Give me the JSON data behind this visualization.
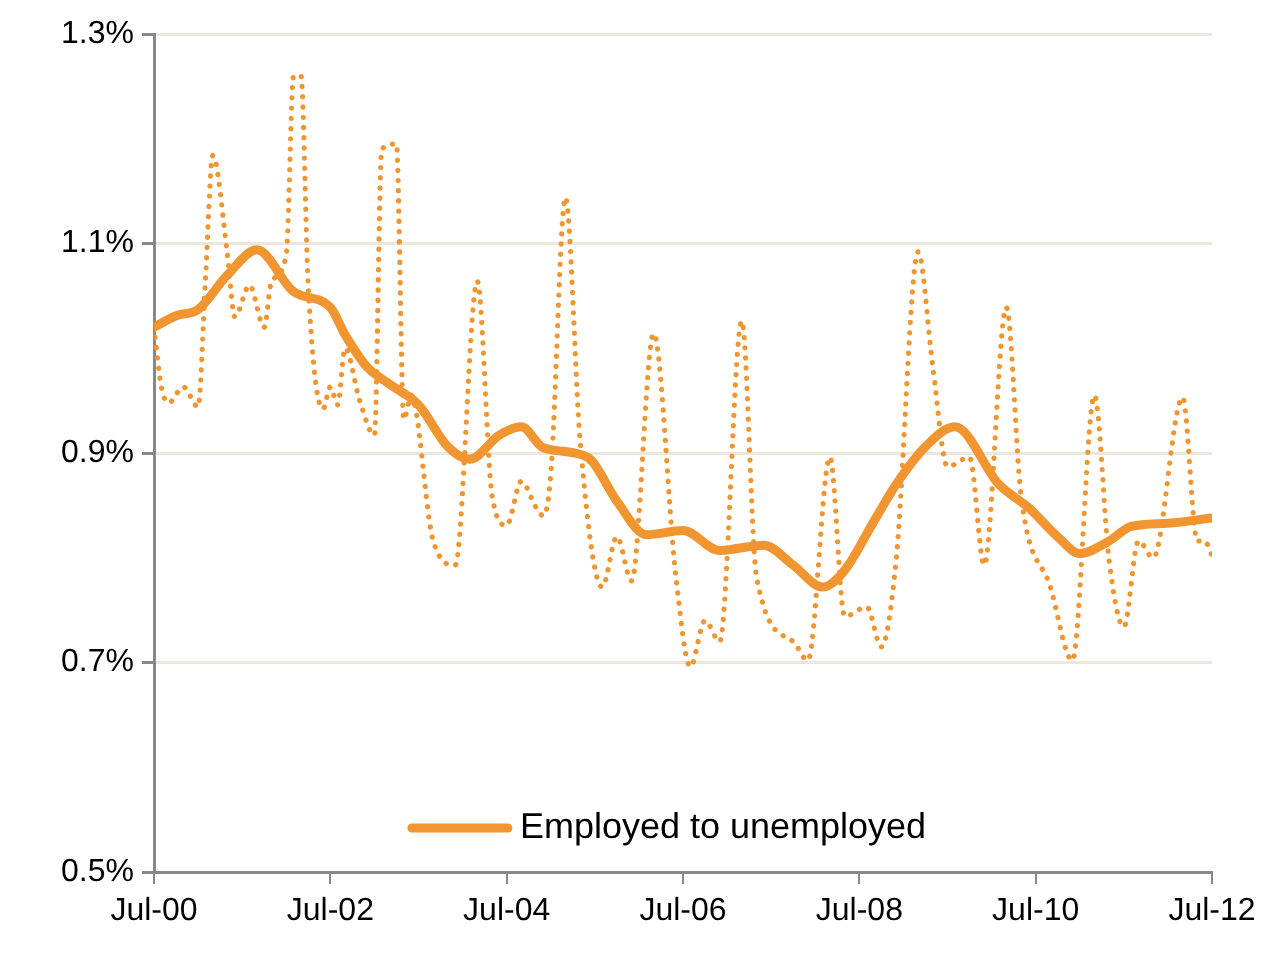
{
  "chart_data": {
    "type": "line",
    "xlim": [
      "2000-07",
      "2012-07"
    ],
    "xticks": [
      {
        "value": "2000-07",
        "label": "Jul-00"
      },
      {
        "value": "2002-07",
        "label": "Jul-02"
      },
      {
        "value": "2004-07",
        "label": "Jul-04"
      },
      {
        "value": "2006-07",
        "label": "Jul-06"
      },
      {
        "value": "2008-07",
        "label": "Jul-08"
      },
      {
        "value": "2010-07",
        "label": "Jul-10"
      },
      {
        "value": "2012-07",
        "label": "Jul-12"
      }
    ],
    "ylim": [
      0.5,
      1.3
    ],
    "yticks": [
      {
        "value": 0.5,
        "label": "0.5%"
      },
      {
        "value": 0.7,
        "label": "0.7%"
      },
      {
        "value": 0.9,
        "label": "0.9%"
      },
      {
        "value": 1.1,
        "label": "1.1%"
      },
      {
        "value": 1.3,
        "label": "1.3%"
      }
    ],
    "grid": "y",
    "legend": "bottom",
    "marker": "none",
    "series": [
      {
        "color": "#f0952f",
        "line_style": "dotted",
        "x": [
          "2000-07",
          "2000-08",
          "2000-09",
          "2000-11",
          "2001-01",
          "2001-02",
          "2001-03",
          "2001-05",
          "2001-06",
          "2001-08",
          "2001-10",
          "2001-11",
          "2002-01",
          "2002-02",
          "2002-03",
          "2002-04",
          "2002-06",
          "2002-07",
          "2002-08",
          "2002-09",
          "2002-11",
          "2003-01",
          "2003-02",
          "2003-04",
          "2003-05",
          "2003-06",
          "2003-09",
          "2003-12",
          "2004-03",
          "2004-05",
          "2004-07",
          "2004-09",
          "2004-11",
          "2004-12",
          "2005-01",
          "2005-03",
          "2005-05",
          "2005-08",
          "2005-10",
          "2005-12",
          "2006-03",
          "2006-06",
          "2006-08",
          "2006-10",
          "2006-12",
          "2007-03",
          "2007-05",
          "2007-10",
          "2007-12",
          "2008-03",
          "2008-05",
          "2008-08",
          "2008-10",
          "2008-12",
          "2009-03",
          "2009-05",
          "2009-07",
          "2009-10",
          "2009-12",
          "2010-03",
          "2010-05",
          "2010-09",
          "2010-12",
          "2011-03",
          "2011-05",
          "2011-07",
          "2011-09",
          "2011-11",
          "2012-03",
          "2012-05",
          "2012-06",
          "2012-07"
        ],
        "values": [
          1.02,
          0.963,
          0.948,
          0.963,
          0.944,
          1.064,
          1.184,
          1.089,
          1.03,
          1.06,
          1.02,
          1.064,
          1.089,
          1.26,
          1.26,
          1.058,
          0.942,
          0.963,
          0.946,
          1.0,
          0.95,
          0.917,
          1.19,
          1.195,
          0.932,
          0.955,
          0.816,
          0.793,
          1.064,
          0.86,
          0.831,
          0.873,
          0.848,
          0.84,
          0.879,
          1.144,
          0.911,
          0.772,
          0.82,
          0.778,
          1.014,
          0.784,
          0.696,
          0.74,
          0.72,
          1.026,
          0.782,
          0.72,
          0.702,
          0.896,
          0.744,
          0.753,
          0.715,
          0.797,
          1.092,
          0.982,
          0.887,
          0.896,
          0.793,
          1.039,
          0.86,
          0.772,
          0.702,
          0.955,
          0.797,
          0.734,
          0.816,
          0.8,
          0.953,
          0.816,
          0.816,
          0.802
        ]
      },
      {
        "name": "Employed to unemployed",
        "color": "#f0952f",
        "line_style": "solid",
        "x": [
          "2000-07",
          "2000-10",
          "2001-01",
          "2001-05",
          "2001-09",
          "2002-02",
          "2002-07",
          "2002-09",
          "2002-12",
          "2003-03",
          "2003-07",
          "2003-11",
          "2004-02",
          "2004-06",
          "2004-09",
          "2004-12",
          "2005-06",
          "2005-10",
          "2006-02",
          "2006-07",
          "2006-12",
          "2007-06",
          "2007-10",
          "2008-02",
          "2008-05",
          "2008-09",
          "2008-12",
          "2009-04",
          "2009-08",
          "2010-02",
          "2010-06",
          "2010-10",
          "2011-01",
          "2011-05",
          "2011-08",
          "2012-01",
          "2012-07"
        ],
        "values": [
          1.02,
          1.031,
          1.037,
          1.07,
          1.094,
          1.054,
          1.039,
          1.013,
          0.982,
          0.966,
          0.946,
          0.906,
          0.894,
          0.917,
          0.925,
          0.905,
          0.896,
          0.854,
          0.822,
          0.826,
          0.807,
          0.812,
          0.793,
          0.772,
          0.788,
          0.835,
          0.87,
          0.906,
          0.925,
          0.87,
          0.848,
          0.82,
          0.804,
          0.816,
          0.83,
          0.833,
          0.838
        ]
      }
    ]
  }
}
